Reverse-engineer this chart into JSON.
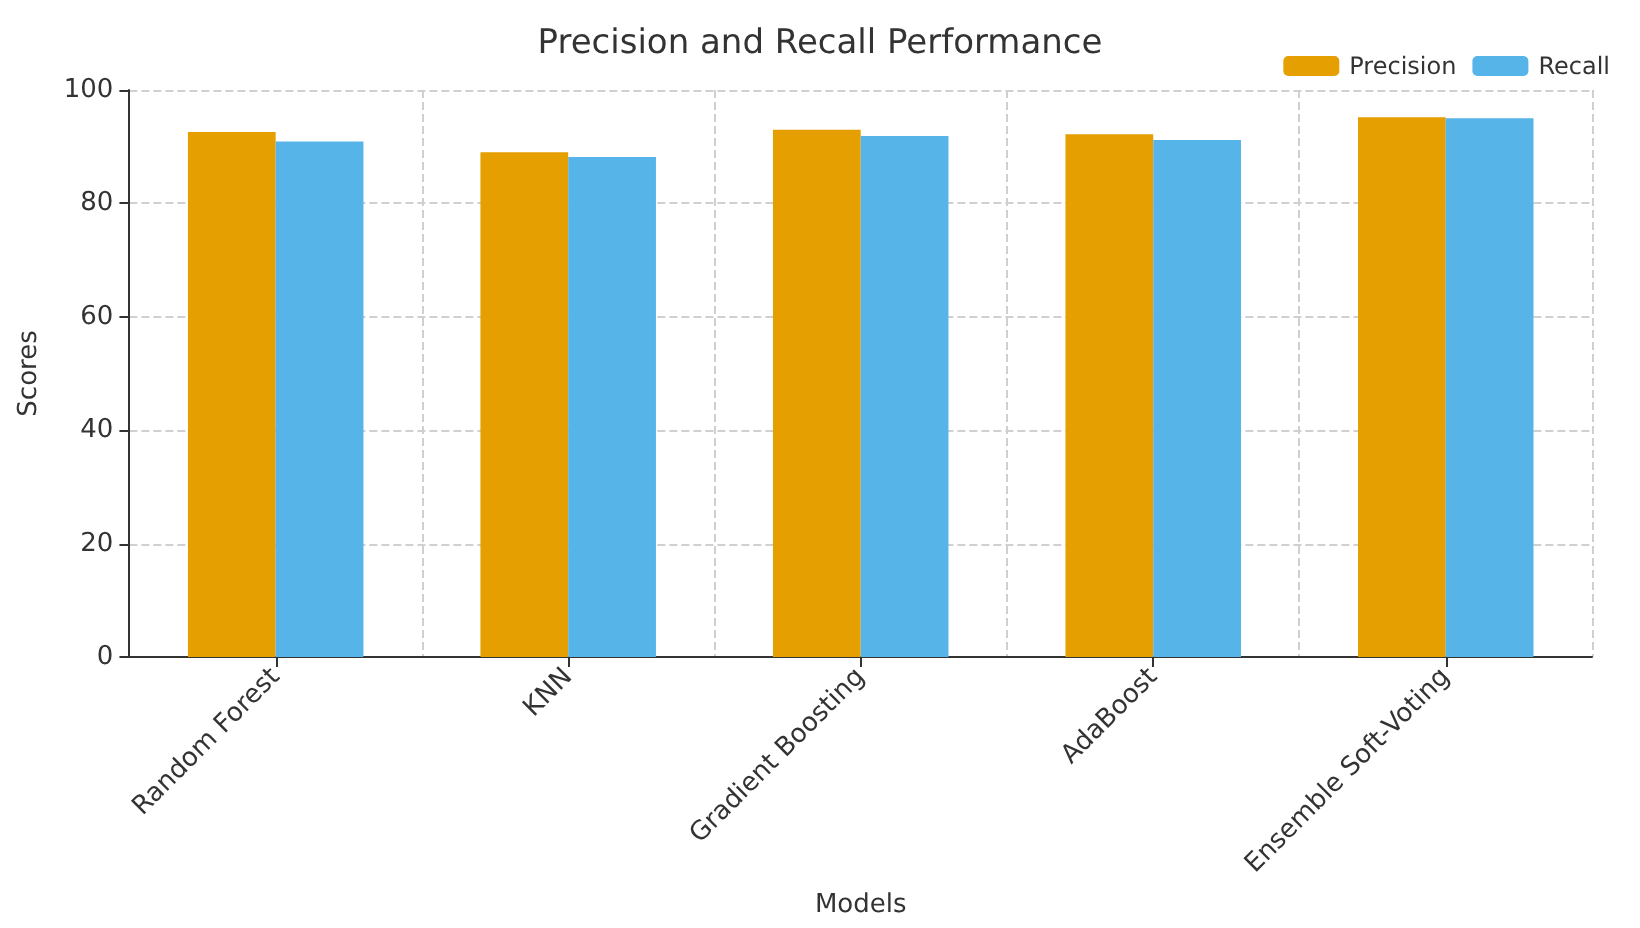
{
  "chart_data": {
    "type": "bar",
    "title": "Precision and Recall Performance",
    "xlabel": "Models",
    "ylabel": "Scores",
    "categories": [
      "Random Forest",
      "KNN",
      "Gradient Boosting",
      "AdaBoost",
      "Ensemble Soft-Voting"
    ],
    "series": [
      {
        "name": "Precision",
        "color": "#e69f00",
        "values": [
          92.6,
          89.0,
          93.0,
          92.2,
          95.2
        ]
      },
      {
        "name": "Recall",
        "color": "#56b4e9",
        "values": [
          90.9,
          88.2,
          91.9,
          91.2,
          95.0
        ]
      }
    ],
    "ylim": [
      0,
      100
    ],
    "yticks": [
      0,
      20,
      40,
      60,
      80,
      100
    ],
    "grid": true,
    "legend": "top right"
  }
}
